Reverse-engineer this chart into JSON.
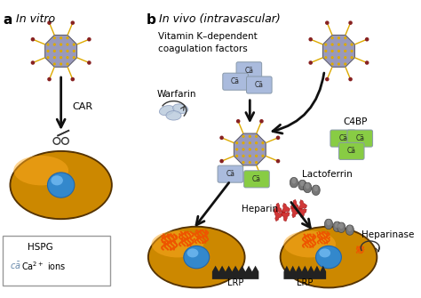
{
  "bg_color": "#ffffff",
  "label_a": "a",
  "label_b": "b",
  "label_a_italic": "In vitro",
  "label_b_italic": "In vivo (intravascular)",
  "text_car": "CAR",
  "text_vk": "Vitamin K–dependent\ncoagulation factors",
  "text_warfarin": "Warfarin",
  "text_c4bp": "C4BP",
  "text_lactoferrin": "Lactoferrin",
  "text_heparin": "Heparin",
  "text_heparinase": "Heparinase",
  "text_lrp1": "LRP",
  "text_lrp2": "LRP",
  "text_hspg": "HSPG",
  "text_ca_ions": "Ca$^{2+}$ ions",
  "cell_color": "#cc8800",
  "nucleus_color": "#4499dd",
  "virus_body_color": "#9999bb",
  "virus_dot_color": "#ddaa00",
  "virus_tip_color": "#882222",
  "ca_blue": "#aabbdd",
  "ca_green": "#88cc44",
  "hspg_color": "#ee5500",
  "heparin_color": "#cc2222",
  "warfarin_color": "#bbccdd",
  "lactoferrin_color": "#777777",
  "lrp_color": "#222222",
  "arrow_color": "#111111"
}
